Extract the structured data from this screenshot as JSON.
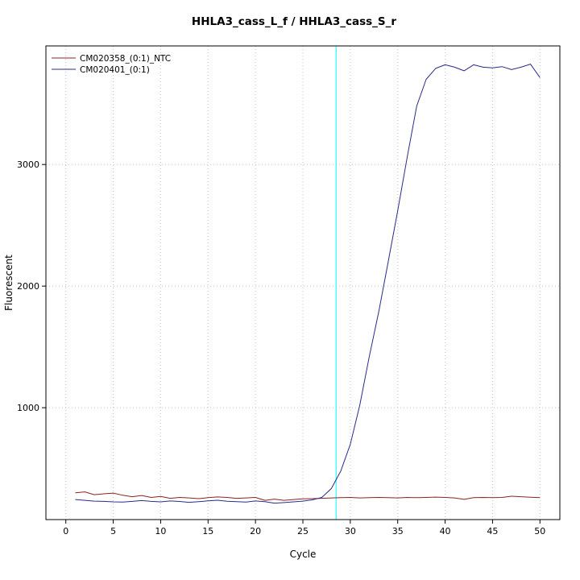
{
  "chart_data": {
    "type": "line",
    "title": "HHLA3_cass_L_f / HHLA3_cass_S_r",
    "xlabel": "Cycle",
    "ylabel": "Fluorescent",
    "x": [
      1,
      2,
      3,
      4,
      5,
      6,
      7,
      8,
      9,
      10,
      11,
      12,
      13,
      14,
      15,
      16,
      17,
      18,
      19,
      20,
      21,
      22,
      23,
      24,
      25,
      26,
      27,
      28,
      29,
      30,
      31,
      32,
      33,
      34,
      35,
      36,
      37,
      38,
      39,
      40,
      41,
      42,
      43,
      44,
      45,
      46,
      47,
      48,
      49,
      50
    ],
    "series": [
      {
        "name": "CM020358_(0:1)_NTC",
        "color": "#8b2323",
        "values": [
          300,
          308,
          285,
          292,
          298,
          280,
          268,
          278,
          262,
          270,
          255,
          262,
          258,
          252,
          260,
          266,
          262,
          255,
          258,
          262,
          238,
          248,
          238,
          245,
          250,
          252,
          255,
          258,
          260,
          262,
          258,
          260,
          262,
          260,
          258,
          262,
          260,
          262,
          265,
          262,
          258,
          246,
          260,
          262,
          260,
          262,
          272,
          268,
          264,
          260
        ]
      },
      {
        "name": "CM020401_(0:1)",
        "color": "#2b2b8c",
        "values": [
          245,
          238,
          232,
          230,
          226,
          224,
          230,
          236,
          230,
          226,
          233,
          229,
          222,
          227,
          234,
          239,
          231,
          227,
          224,
          233,
          227,
          215,
          220,
          226,
          232,
          242,
          262,
          335,
          480,
          700,
          1020,
          1420,
          1790,
          2200,
          2620,
          3060,
          3480,
          3700,
          3790,
          3820,
          3800,
          3770,
          3820,
          3800,
          3795,
          3805,
          3780,
          3800,
          3825,
          3715
        ]
      }
    ],
    "threshold_cycle_line": {
      "x": 28.5,
      "color": "#00ffff"
    },
    "xticks": [
      0,
      5,
      10,
      15,
      20,
      25,
      30,
      35,
      40,
      45,
      50
    ],
    "yticks": [
      1000,
      2000,
      3000
    ],
    "xlim": [
      -2.1,
      52.1
    ],
    "ylim": [
      80,
      3975
    ],
    "grid": "dotted",
    "legend_position": "top-left"
  }
}
